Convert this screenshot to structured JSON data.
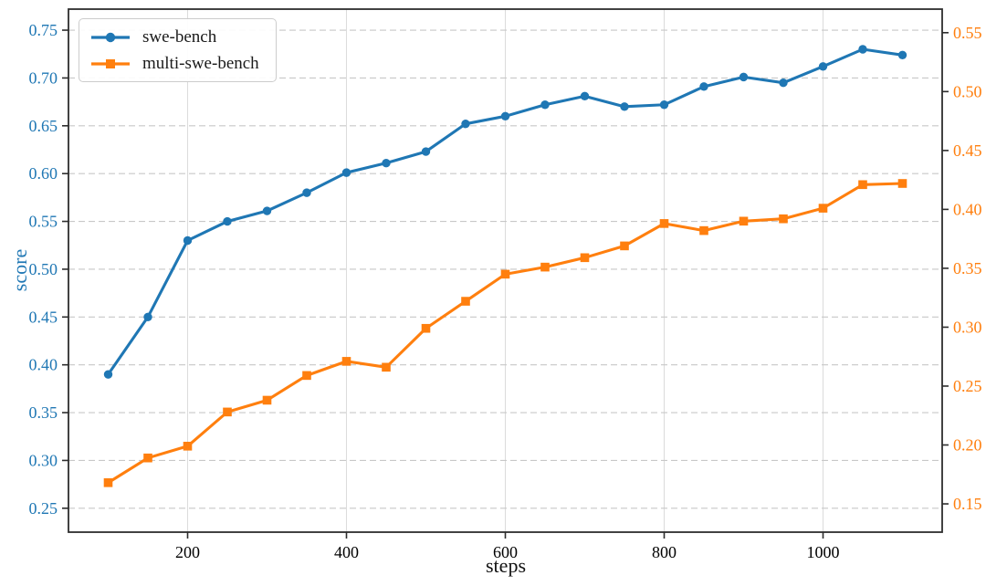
{
  "chart_data": {
    "type": "line",
    "x": [
      100,
      150,
      200,
      250,
      300,
      350,
      400,
      450,
      500,
      550,
      600,
      650,
      700,
      750,
      800,
      850,
      900,
      950,
      1000,
      1050,
      1100
    ],
    "series": [
      {
        "name": "swe-bench",
        "axis": "left",
        "color": "#1f77b4",
        "marker": "circle",
        "values": [
          0.39,
          0.45,
          0.53,
          0.55,
          0.561,
          0.58,
          0.601,
          0.611,
          0.623,
          0.652,
          0.66,
          0.672,
          0.681,
          0.67,
          0.672,
          0.691,
          0.701,
          0.695,
          0.712,
          0.73,
          0.724
        ]
      },
      {
        "name": "multi-swe-bench",
        "axis": "right",
        "color": "#ff7f0e",
        "marker": "square",
        "values": [
          0.168,
          0.189,
          0.199,
          0.228,
          0.238,
          0.259,
          0.271,
          0.266,
          0.299,
          0.322,
          0.345,
          0.351,
          0.359,
          0.369,
          0.388,
          0.382,
          0.39,
          0.392,
          0.401,
          0.421,
          0.422
        ]
      }
    ],
    "title": "",
    "xlabel": "steps",
    "ylabel": "score",
    "x_ticks": [
      200,
      400,
      600,
      800,
      1000
    ],
    "y_ticks_left": [
      0.25,
      0.3,
      0.35,
      0.4,
      0.45,
      0.5,
      0.55,
      0.6,
      0.65,
      0.7,
      0.75
    ],
    "y_ticks_right": [
      0.15,
      0.2,
      0.25,
      0.3,
      0.35,
      0.4,
      0.45,
      0.5,
      0.55
    ],
    "xlim": [
      50,
      1150
    ],
    "ylim_left": [
      0.225,
      0.772
    ],
    "ylim_right": [
      0.126,
      0.57
    ],
    "grid": {
      "horizontal": "dashed",
      "vertical": "solid"
    },
    "legend": {
      "position": "upper-left",
      "entries": [
        "swe-bench",
        "multi-swe-bench"
      ]
    },
    "colors": {
      "left_axis_labels": "#1f77b4",
      "right_axis_labels": "#ff7f0e",
      "x_axis_labels": "#000000",
      "gridline_horizontal": "#c8c8c8",
      "gridline_vertical": "#dcdcdc",
      "spine": "#2d2d2d"
    }
  }
}
